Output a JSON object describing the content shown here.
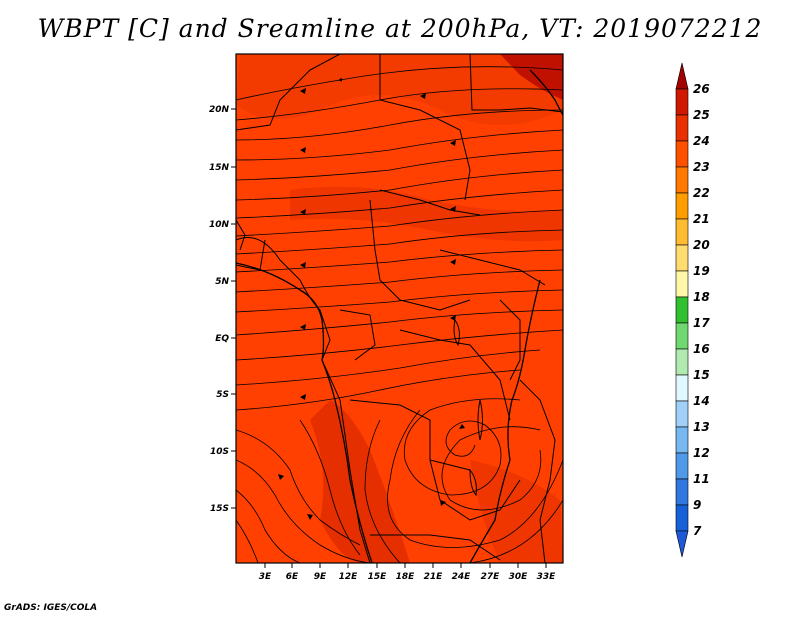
{
  "title": "WBPT [C] and Sreamline at 200hPa, VT: 2019072212",
  "footer": "GrADS: IGES/COLA",
  "map": {
    "lat_ticks": [
      "20N",
      "15N",
      "10N",
      "5N",
      "EQ",
      "5S",
      "10S",
      "15S"
    ],
    "lon_ticks": [
      "3E",
      "6E",
      "9E",
      "12E",
      "15E",
      "18E",
      "21E",
      "24E",
      "27E",
      "30E",
      "33E"
    ],
    "field": "WBPT",
    "level": "200hPa",
    "field_colors": {
      "dominant": "#ff4000",
      "high": "#e02a00",
      "highest": "#c01000"
    }
  },
  "colorbar": {
    "labels": [
      "26",
      "25",
      "24",
      "23",
      "22",
      "21",
      "20",
      "19",
      "18",
      "17",
      "16",
      "15",
      "14",
      "13",
      "12",
      "11",
      "9",
      "7"
    ],
    "colors": [
      "#a50000",
      "#d01800",
      "#e83000",
      "#ff5000",
      "#ff7800",
      "#ff9c00",
      "#ffbc30",
      "#ffdc70",
      "#fff8a8",
      "#30c030",
      "#70d870",
      "#b0eab0",
      "#e0f8ff",
      "#a0d0f8",
      "#78b8f0",
      "#5098e8",
      "#3078e0",
      "#1860d8",
      "#1e5ad8"
    ]
  }
}
